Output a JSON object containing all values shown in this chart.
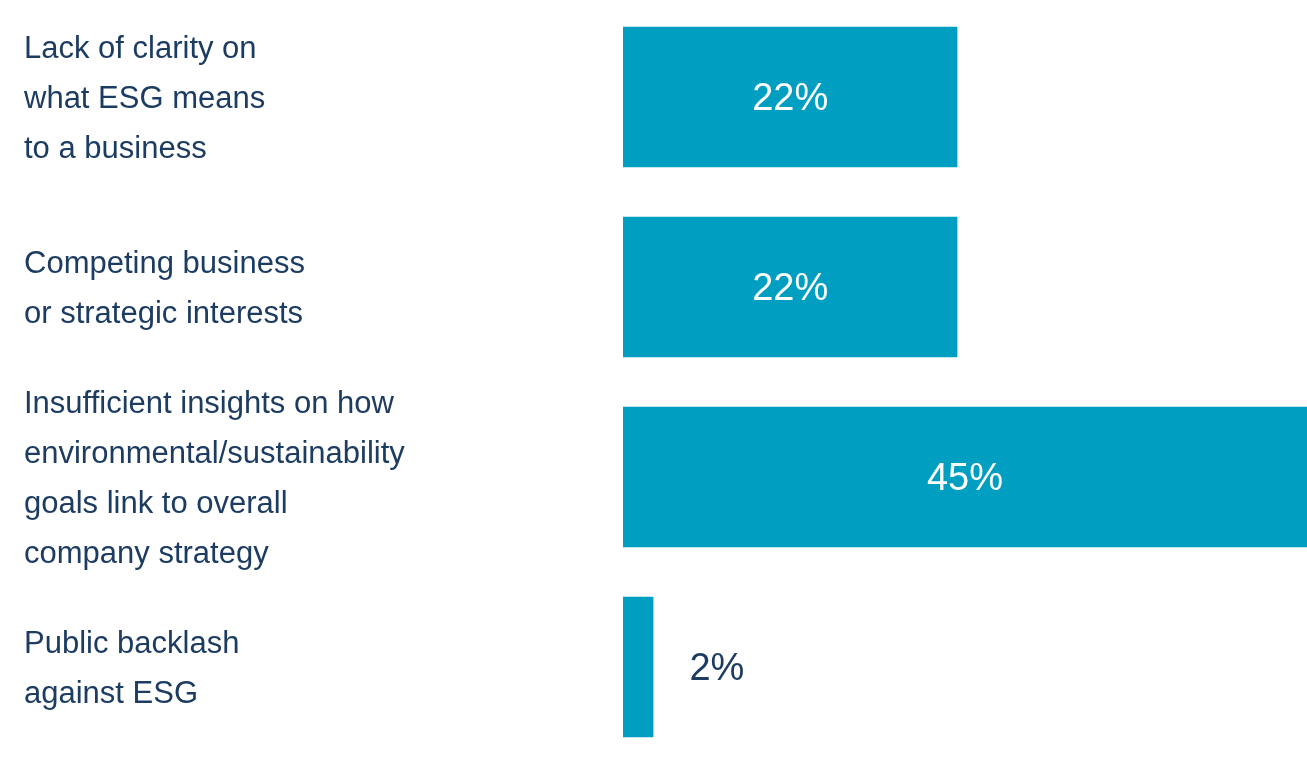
{
  "chart_data": {
    "type": "bar",
    "orientation": "horizontal",
    "categories": [
      "Lack of clarity on\nwhat ESG means\nto a business",
      "Competing business\nor strategic interests",
      "Insufficient insights on how\nenvironmental/sustainability\ngoals link to overall\ncompany strategy",
      "Public backlash\nagainst ESG"
    ],
    "values": [
      22,
      22,
      45,
      2
    ],
    "value_labels": [
      "22%",
      "22%",
      "45%",
      "2%"
    ],
    "color": "#009fc2",
    "tick_labels": "y"
  }
}
